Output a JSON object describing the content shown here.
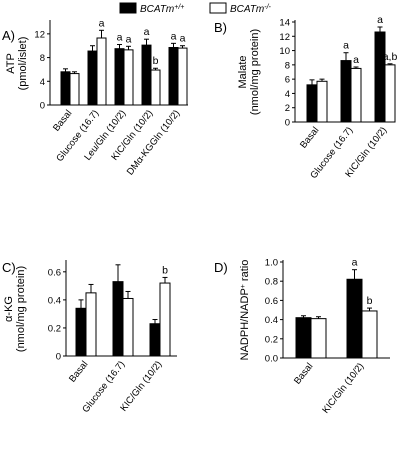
{
  "legend": {
    "items": [
      {
        "base": "BCATm",
        "sup": "+/+",
        "color": "#000000",
        "filled": true
      },
      {
        "base": "BCATm",
        "sup": "-/-",
        "color": "#ffffff",
        "filled": false
      }
    ]
  },
  "chart_data": [
    {
      "panel": "A)",
      "type": "bar",
      "ylabel_lines": [
        "ATP",
        "(pmol/islet)"
      ],
      "ylim": [
        0,
        14
      ],
      "yticks": [
        0,
        4,
        8,
        12
      ],
      "categories": [
        "Basal",
        "Glucose (16.7)",
        "Leu/Gln (10/2)",
        "KIC/Gln (10/2)",
        "DMα-KGGln (10/2)"
      ],
      "series": [
        {
          "name": "BCATm+/+",
          "values": [
            5.6,
            9.1,
            9.5,
            10.1,
            9.7
          ],
          "errors": [
            0.5,
            0.9,
            0.7,
            1.0,
            0.7
          ]
        },
        {
          "name": "BCATm-/-",
          "values": [
            5.3,
            11.3,
            9.3,
            5.9,
            9.6
          ],
          "errors": [
            0.3,
            1.3,
            0.6,
            0.3,
            0.4
          ]
        }
      ],
      "annotations": [
        {
          "category": 1,
          "series": 0,
          "text": ""
        },
        {
          "category": 1,
          "series": 1,
          "text": "a"
        },
        {
          "category": 2,
          "series": 0,
          "text": "a"
        },
        {
          "category": 2,
          "series": 1,
          "text": "a"
        },
        {
          "category": 3,
          "series": 0,
          "text": "a"
        },
        {
          "category": 3,
          "series": 1,
          "text": "b"
        },
        {
          "category": 4,
          "series": 0,
          "text": "a"
        },
        {
          "category": 4,
          "series": 1,
          "text": "a"
        }
      ]
    },
    {
      "panel": "B)",
      "type": "bar",
      "ylabel_lines": [
        "Malate",
        "(nmol/mg protein)"
      ],
      "ylim": [
        0,
        14
      ],
      "yticks": [
        0,
        2,
        4,
        6,
        8,
        10,
        12,
        14
      ],
      "categories": [
        "Basal",
        "Glucose (16.7)",
        "KIC/Gln (10/2)"
      ],
      "series": [
        {
          "name": "BCATm+/+",
          "values": [
            5.2,
            8.6,
            12.6
          ],
          "errors": [
            0.7,
            1.1,
            0.7
          ]
        },
        {
          "name": "BCATm-/-",
          "values": [
            5.7,
            7.5,
            8.0
          ],
          "errors": [
            0.3,
            0.2,
            0.15
          ]
        }
      ],
      "annotations": [
        {
          "category": 1,
          "series": 0,
          "text": "a"
        },
        {
          "category": 1,
          "series": 1,
          "text": "a"
        },
        {
          "category": 2,
          "series": 0,
          "text": "a"
        },
        {
          "category": 2,
          "series": 1,
          "text": "a,b"
        }
      ]
    },
    {
      "panel": "C)",
      "type": "bar",
      "ylabel_lines": [
        "α-KG",
        "(nmol/mg protein)"
      ],
      "ylim": [
        0,
        0.67
      ],
      "yticks": [
        0,
        0.2,
        0.4,
        0.6
      ],
      "ytick_labels": [
        "0",
        "0.2",
        "0.4",
        "0.6"
      ],
      "categories": [
        "Basal",
        "Glucose (16.7)",
        "KIC/Gln (10/2)"
      ],
      "series": [
        {
          "name": "BCATm+/+",
          "values": [
            0.34,
            0.53,
            0.23
          ],
          "errors": [
            0.06,
            0.12,
            0.03
          ]
        },
        {
          "name": "BCATm-/-",
          "values": [
            0.45,
            0.41,
            0.52
          ],
          "errors": [
            0.06,
            0.05,
            0.04
          ]
        }
      ],
      "annotations": [
        {
          "category": 2,
          "series": 1,
          "text": "b"
        }
      ]
    },
    {
      "panel": "D)",
      "type": "bar",
      "ylabel_html": "NADPH/NADP<tspan baseline-shift=\"super\" font-size=\"7\">+</tspan> ratio",
      "ylim": [
        0,
        1.0
      ],
      "yticks": [
        0,
        0.2,
        0.4,
        0.6,
        0.8,
        1.0
      ],
      "ytick_labels": [
        "0.0",
        "0.2",
        "0.4",
        "0.6",
        "0.8",
        "1.0"
      ],
      "categories": [
        "Basal",
        "KIC/Gln (10/2)"
      ],
      "series": [
        {
          "name": "BCATm+/+",
          "values": [
            0.42,
            0.82
          ],
          "errors": [
            0.02,
            0.1
          ]
        },
        {
          "name": "BCATm-/-",
          "values": [
            0.41,
            0.49
          ],
          "errors": [
            0.02,
            0.03
          ]
        }
      ],
      "annotations": [
        {
          "category": 1,
          "series": 0,
          "text": "a"
        },
        {
          "category": 1,
          "series": 1,
          "text": "b"
        }
      ]
    }
  ]
}
